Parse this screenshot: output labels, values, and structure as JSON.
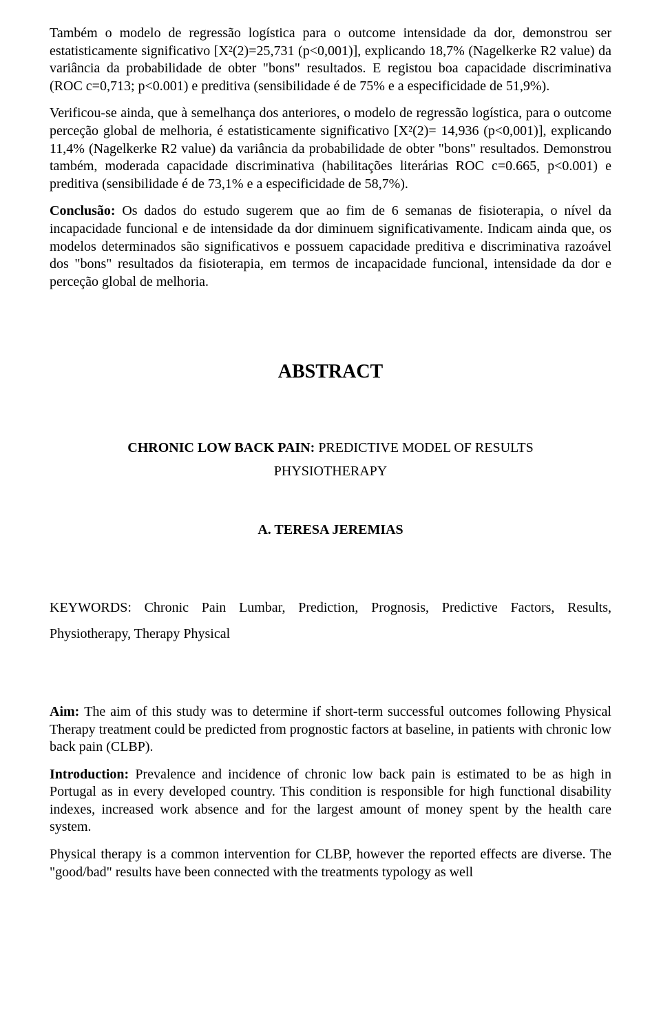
{
  "typography": {
    "body_font_family": "Times New Roman",
    "body_fontsize_pt": 15,
    "heading_fontsize_pt": 21,
    "text_color": "#000000",
    "background_color": "#ffffff",
    "line_height": 1.28,
    "text_align": "justify"
  },
  "paragraphs": {
    "p1": "Também o modelo de regressão logística para o outcome intensidade da dor, demonstrou ser estatisticamente significativo [X²(2)=25,731 (p<0,001)], explicando 18,7% (Nagelkerke R2 value) da variância da probabilidade de obter \"bons\" resultados. E registou boa capacidade discriminativa (ROC c=0,713; p<0.001) e preditiva (sensibilidade é de 75% e a especificidade de 51,9%).",
    "p2": "Verificou-se ainda, que à semelhança dos anteriores, o modelo de regressão logística, para o outcome perceção global de melhoria, é estatisticamente significativo [X²(2)= 14,936 (p<0,001)], explicando 11,4% (Nagelkerke R2 value) da variância da probabilidade de obter \"bons\" resultados. Demonstrou também, moderada capacidade discriminativa (habilitações literárias ROC c=0.665, p<0.001) e preditiva (sensibilidade é de 73,1% e a especificidade de 58,7%).",
    "p3_label": "Conclusão: ",
    "p3_body": "Os dados do estudo sugerem que ao fim de 6 semanas de fisioterapia, o nível da incapacidade funcional e de intensidade da dor diminuem significativamente. Indicam ainda que, os modelos determinados são significativos e possuem capacidade preditiva e discriminativa razoável dos \"bons\" resultados da fisioterapia, em termos de incapacidade funcional, intensidade da dor e perceção global de melhoria."
  },
  "abstract": {
    "heading": "ABSTRACT",
    "title_bold": "CHRONIC LOW BACK PAIN: ",
    "title_rest": "PREDICTIVE MODEL OF RESULTS",
    "subtitle": "PHYSIOTHERAPY",
    "author": "A. TERESA JEREMIAS",
    "keywords_label": "KEYWORDS: ",
    "keywords_body": "Chronic Pain Lumbar, Prediction, Prognosis, Predictive Factors, Results, Physiotherapy, Therapy Physical",
    "aim_label": "Aim: ",
    "aim_body": "The aim of this study was to determine if short-term successful outcomes following Physical Therapy treatment could be predicted from prognostic factors at baseline, in patients with chronic low back pain (CLBP).",
    "intro_label": "Introduction: ",
    "intro_body": " Prevalence and incidence of chronic low back pain is estimated to be as high in Portugal as in every developed country. This condition is responsible for high functional disability indexes, increased work absence and for the largest amount of money spent by the health care system.",
    "p_last": "Physical therapy is a common intervention for CLBP, however the reported effects are diverse. The \"good/bad\" results have been connected with the treatments typology as well"
  }
}
